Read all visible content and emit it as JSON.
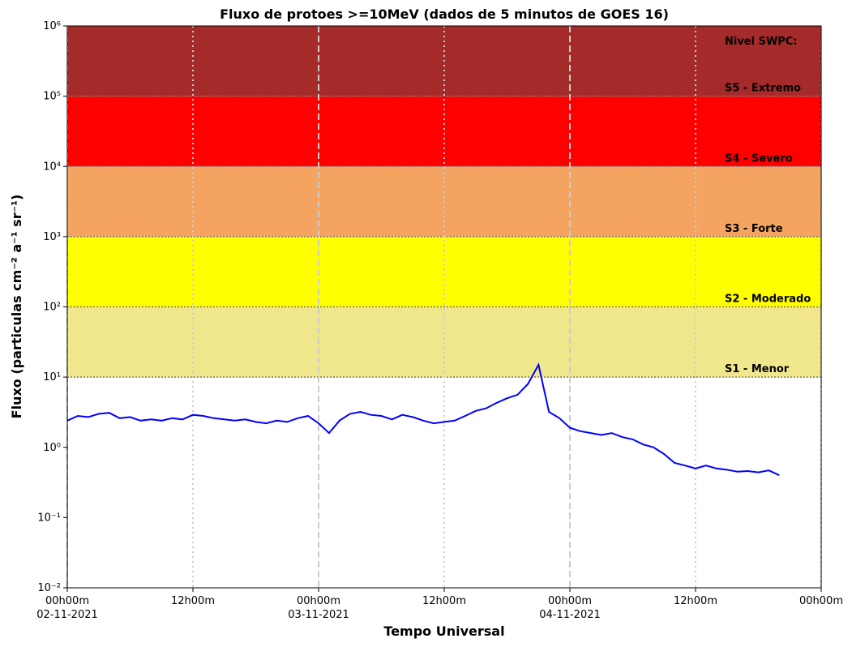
{
  "chart_data": {
    "type": "line",
    "log_y": true,
    "grid": true,
    "title": "Fluxo de protoes >=10MeV (dados de 5 minutos de GOES 16)",
    "x_label": "Tempo Universal",
    "y_label": "Fluxo (particulas cm⁻² a⁻¹ sr⁻¹)",
    "legend_title": "Nivel SWPC:",
    "thresholds": [
      {
        "value": 10,
        "label": "S1 - Menor",
        "color": "#f0e68c"
      },
      {
        "value": 100,
        "label": "S2 - Moderado",
        "color": "#ffff00"
      },
      {
        "value": 1000,
        "label": "S3 - Forte",
        "color": "#f4a460"
      },
      {
        "value": 10000,
        "label": "S4 - Severo",
        "color": "#ff0000"
      },
      {
        "value": 100000,
        "label": "S5 - Extremo",
        "color": "#a52a2a"
      }
    ],
    "xlim": [
      "2021-11-02 00:00",
      "2021-11-05 00:00"
    ],
    "xticks": [
      {
        "value": "2021-11-02 00:00",
        "label": "00h00m\n02-11-2021"
      },
      {
        "value": "2021-11-02 12:00",
        "label": "12h00m"
      },
      {
        "value": "2021-11-03 00:00",
        "label": "00h00m\n03-11-2021"
      },
      {
        "value": "2021-11-03 12:00",
        "label": "12h00m"
      },
      {
        "value": "2021-11-04 00:00",
        "label": "00h00m\n04-11-2021"
      },
      {
        "value": "2021-11-04 12:00",
        "label": "12h00m"
      },
      {
        "value": "2021-11-05 00:00",
        "label": "00h00m"
      }
    ],
    "ylim": [
      0.01,
      1000000
    ],
    "yticks": [
      {
        "value": 0.01,
        "label": "10⁻²"
      },
      {
        "value": 0.1,
        "label": "10⁻¹"
      },
      {
        "value": 1,
        "label": "10⁰"
      },
      {
        "value": 10,
        "label": "10¹"
      },
      {
        "value": 100,
        "label": "10²"
      },
      {
        "value": 1000,
        "label": "10³"
      },
      {
        "value": 10000,
        "label": "10⁴"
      },
      {
        "value": 100000,
        "label": "10⁵"
      },
      {
        "value": 1000000,
        "label": "10⁶"
      }
    ],
    "x": [
      "2021-11-02 00:00",
      "2021-11-02 01:00",
      "2021-11-02 02:00",
      "2021-11-02 03:00",
      "2021-11-02 04:00",
      "2021-11-02 05:00",
      "2021-11-02 06:00",
      "2021-11-02 07:00",
      "2021-11-02 08:00",
      "2021-11-02 09:00",
      "2021-11-02 10:00",
      "2021-11-02 11:00",
      "2021-11-02 12:00",
      "2021-11-02 13:00",
      "2021-11-02 14:00",
      "2021-11-02 15:00",
      "2021-11-02 16:00",
      "2021-11-02 17:00",
      "2021-11-02 18:00",
      "2021-11-02 19:00",
      "2021-11-02 20:00",
      "2021-11-02 21:00",
      "2021-11-02 22:00",
      "2021-11-02 23:00",
      "2021-11-03 00:00",
      "2021-11-03 01:00",
      "2021-11-03 02:00",
      "2021-11-03 03:00",
      "2021-11-03 04:00",
      "2021-11-03 05:00",
      "2021-11-03 06:00",
      "2021-11-03 07:00",
      "2021-11-03 08:00",
      "2021-11-03 09:00",
      "2021-11-03 10:00",
      "2021-11-03 11:00",
      "2021-11-03 12:00",
      "2021-11-03 13:00",
      "2021-11-03 14:00",
      "2021-11-03 15:00",
      "2021-11-03 16:00",
      "2021-11-03 17:00",
      "2021-11-03 18:00",
      "2021-11-03 19:00",
      "2021-11-03 20:00",
      "2021-11-03 21:00",
      "2021-11-03 22:00",
      "2021-11-03 23:00",
      "2021-11-04 00:00",
      "2021-11-04 01:00",
      "2021-11-04 02:00",
      "2021-11-04 03:00",
      "2021-11-04 04:00",
      "2021-11-04 05:00",
      "2021-11-04 06:00",
      "2021-11-04 07:00",
      "2021-11-04 08:00",
      "2021-11-04 09:00",
      "2021-11-04 10:00",
      "2021-11-04 11:00",
      "2021-11-04 12:00",
      "2021-11-04 13:00",
      "2021-11-04 14:00",
      "2021-11-04 15:00",
      "2021-11-04 16:00",
      "2021-11-04 17:00",
      "2021-11-04 18:00",
      "2021-11-04 19:00",
      "2021-11-04 20:00"
    ],
    "series": [
      {
        "color": "#0000ff",
        "values": [
          2.4,
          2.8,
          2.7,
          3.0,
          3.1,
          2.6,
          2.7,
          2.4,
          2.5,
          2.4,
          2.6,
          2.5,
          2.9,
          2.8,
          2.6,
          2.5,
          2.4,
          2.5,
          2.3,
          2.2,
          2.4,
          2.3,
          2.6,
          2.8,
          2.2,
          1.6,
          2.4,
          3.0,
          3.2,
          2.9,
          2.8,
          2.5,
          2.9,
          2.7,
          2.4,
          2.2,
          2.3,
          2.4,
          2.8,
          3.3,
          3.6,
          4.3,
          5.0,
          5.6,
          8.0,
          15,
          3.2,
          2.6,
          1.9,
          1.7,
          1.6,
          1.5,
          1.6,
          1.4,
          1.3,
          1.1,
          1.0,
          0.8,
          0.6,
          0.55,
          0.5,
          0.55,
          0.5,
          0.48,
          0.45,
          0.46,
          0.44,
          0.47,
          0.4
        ]
      }
    ]
  }
}
